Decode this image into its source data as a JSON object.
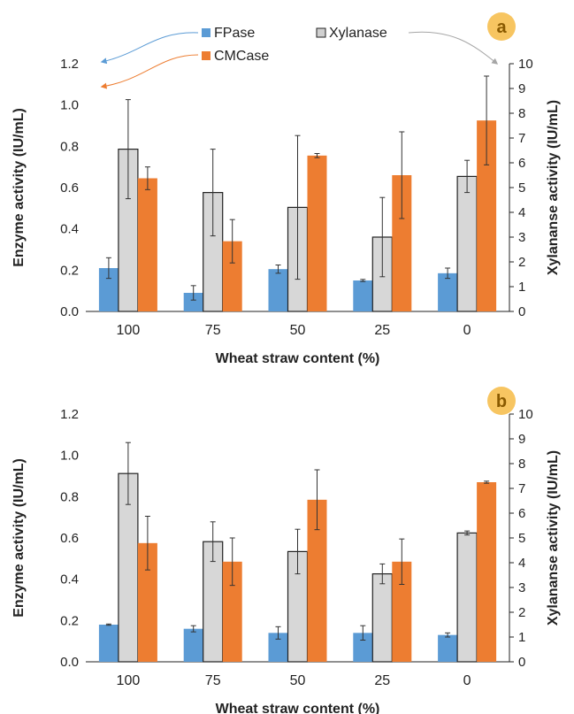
{
  "legend": {
    "fpase": "FPase",
    "cmcase": "CMCase",
    "xylanase": "Xylanase"
  },
  "colors": {
    "fpase": "#5b9bd5",
    "cmcase": "#ed7d31",
    "xylanase": "#d0d0d0",
    "badge": "#f7c561",
    "badge_text": "#8a5a00"
  },
  "chart_data": [
    {
      "type": "bar",
      "panel_label": "a",
      "categories": [
        "100",
        "75",
        "50",
        "25",
        "0"
      ],
      "xlabel": "Wheat straw content (%)",
      "ylabel": "Enzyme activity (IU/mL)",
      "y2label": "Xylananse activity (IU/mL)",
      "ylim": [
        0,
        1.2
      ],
      "y2lim": [
        0,
        10
      ],
      "yticks": [
        "0.0",
        "0.2",
        "0.4",
        "0.6",
        "0.8",
        "1.0",
        "1.2"
      ],
      "y2ticks": [
        "0",
        "1",
        "2",
        "3",
        "4",
        "5",
        "6",
        "7",
        "8",
        "9",
        "10"
      ],
      "series": [
        {
          "name": "FPase",
          "axis": "left",
          "values": [
            0.21,
            0.09,
            0.205,
            0.15,
            0.185
          ],
          "errors": [
            0.05,
            0.035,
            0.02,
            0.005,
            0.025
          ]
        },
        {
          "name": "Xylanase",
          "axis": "right",
          "values": [
            6.55,
            4.8,
            4.2,
            3.0,
            5.45
          ],
          "errors": [
            2.0,
            1.75,
            2.9,
            1.6,
            0.65
          ]
        },
        {
          "name": "CMCase",
          "axis": "left",
          "values": [
            0.645,
            0.34,
            0.755,
            0.66,
            0.925
          ],
          "errors": [
            0.055,
            0.105,
            0.01,
            0.21,
            0.215
          ]
        }
      ]
    },
    {
      "type": "bar",
      "panel_label": "b",
      "categories": [
        "100",
        "75",
        "50",
        "25",
        "0"
      ],
      "xlabel": "Wheat straw content (%)",
      "ylabel": "Enzyme activity (IU/mL)",
      "y2label": "Xylananse activity (IU/mL)",
      "ylim": [
        0,
        1.2
      ],
      "y2lim": [
        0,
        10
      ],
      "yticks": [
        "0.0",
        "0.2",
        "0.4",
        "0.6",
        "0.8",
        "1.0",
        "1.2"
      ],
      "y2ticks": [
        "0",
        "1",
        "2",
        "3",
        "4",
        "5",
        "6",
        "7",
        "8",
        "9",
        "10"
      ],
      "series": [
        {
          "name": "FPase",
          "axis": "left",
          "values": [
            0.18,
            0.16,
            0.14,
            0.14,
            0.13
          ],
          "errors": [
            0.003,
            0.015,
            0.03,
            0.035,
            0.01
          ]
        },
        {
          "name": "Xylanase",
          "axis": "right",
          "values": [
            7.6,
            4.85,
            4.45,
            3.55,
            5.2
          ],
          "errors": [
            1.25,
            0.8,
            0.9,
            0.4,
            0.08
          ]
        },
        {
          "name": "CMCase",
          "axis": "left",
          "values": [
            0.575,
            0.485,
            0.785,
            0.485,
            0.87
          ],
          "errors": [
            0.13,
            0.115,
            0.145,
            0.11,
            0.005
          ]
        }
      ]
    }
  ]
}
